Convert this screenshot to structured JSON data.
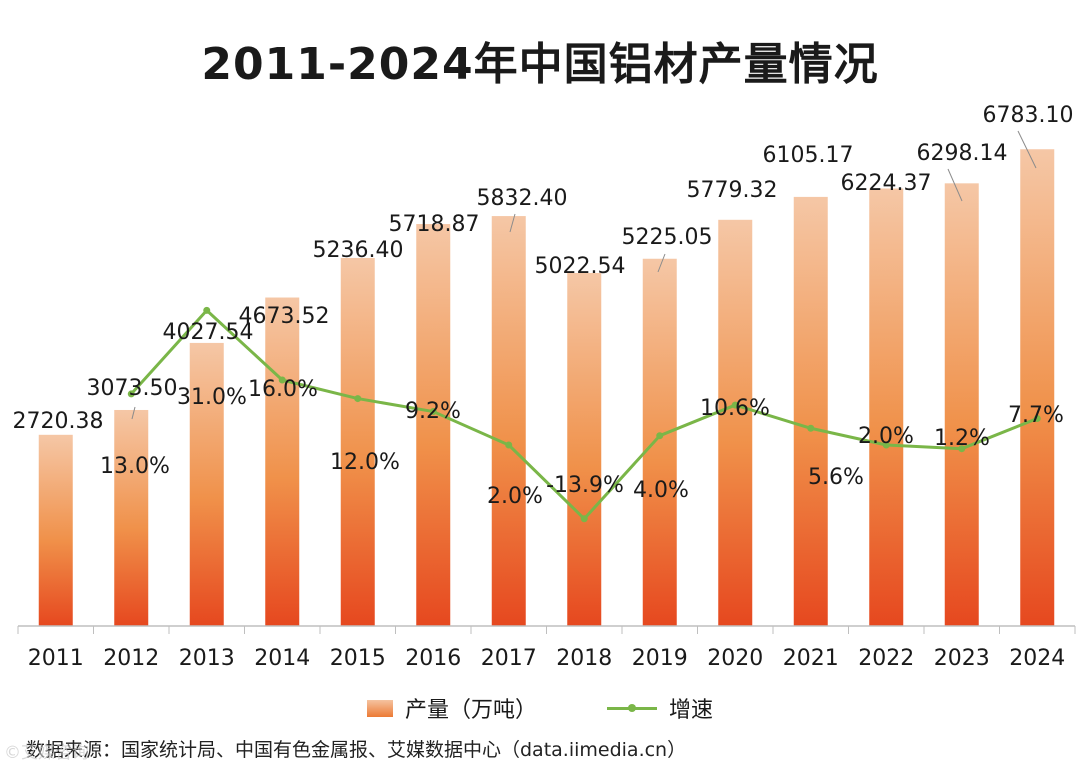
{
  "chart_data": {
    "type": "bar",
    "title": "2011-2024年中国铝材产量情况",
    "categories": [
      "2011",
      "2012",
      "2013",
      "2014",
      "2015",
      "2016",
      "2017",
      "2018",
      "2019",
      "2020",
      "2021",
      "2022",
      "2023",
      "2024"
    ],
    "series": [
      {
        "name": "产量（万吨）",
        "type": "bar",
        "values": [
          2720.38,
          3073.5,
          4027.54,
          4673.52,
          5236.4,
          5718.87,
          5832.4,
          5022.54,
          5225.05,
          5779.32,
          6105.17,
          6224.37,
          6298.14,
          6783.1
        ],
        "labels": [
          "2720.38",
          "3073.50",
          "4027.54",
          "4673.52",
          "5236.40",
          "5718.87",
          "5832.40",
          "5022.54",
          "5225.05",
          "5779.32",
          "6105.17",
          "6224.37",
          "6298.14",
          "6783.10"
        ]
      },
      {
        "name": "增速",
        "type": "line",
        "values": [
          13.0,
          31.0,
          16.0,
          12.0,
          9.2,
          2.0,
          -13.9,
          4.0,
          10.6,
          5.6,
          2.0,
          1.2,
          7.7
        ],
        "x": [
          "2012",
          "2013",
          "2014",
          "2015",
          "2016",
          "2017",
          "2018",
          "2019",
          "2020",
          "2021",
          "2022",
          "2023",
          "2024"
        ],
        "labels": [
          "13.0%",
          "31.0%",
          "16.0%",
          "12.0%",
          "9.2%",
          "2.0%",
          "-13.9%",
          "4.0%",
          "10.6%",
          "5.6%",
          "2.0%",
          "1.2%",
          "7.7%"
        ]
      }
    ],
    "ylim": [
      0,
      7000
    ],
    "y2lim": [
      -37,
      69
    ],
    "xlabel": "",
    "ylabel": "",
    "grid": false,
    "legend": "bottom-center"
  },
  "colors": {
    "bar_top": "#f5c7a6",
    "bar_mid": "#f0914a",
    "bar_bottom": "#e6481f",
    "line": "#7ab648",
    "axis": "#bfbfbf",
    "text": "#1a1a1a"
  },
  "source": "数据来源：国家统计局、中国有色金属报、艾媒数据中心（data.iimedia.cn）",
  "watermark": "©艾媒咨询"
}
